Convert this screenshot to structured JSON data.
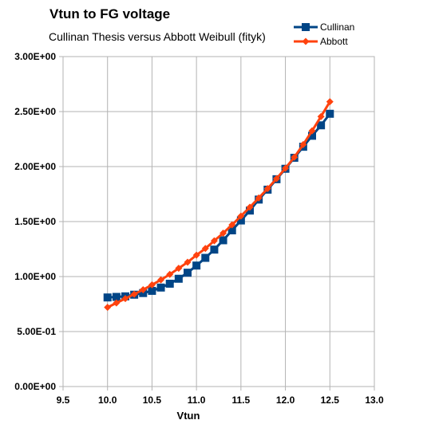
{
  "chart_data": {
    "type": "scatter",
    "title": "Vtun to FG voltage",
    "subtitle": "Cullinan Thesis versus Abbott Weibull (fityk)",
    "xlabel": "Vtun",
    "ylabel": "",
    "xlim": [
      9.5,
      13.0
    ],
    "ylim": [
      0.0,
      3.0
    ],
    "x_ticks": [
      "9.5",
      "10.0",
      "10.5",
      "11.0",
      "11.5",
      "12.0",
      "12.5",
      "13.0"
    ],
    "y_ticks": [
      "0.00E+00",
      "5.00E-01",
      "1.00E+00",
      "1.50E+00",
      "2.00E+00",
      "2.50E+00",
      "3.00E+00"
    ],
    "grid": true,
    "legend_position": "top-right",
    "series": [
      {
        "name": "Cullinan",
        "color": "#004586",
        "marker": "square",
        "x": [
          10.0,
          10.1,
          10.2,
          10.3,
          10.4,
          10.5,
          10.6,
          10.7,
          10.8,
          10.9,
          11.0,
          11.1,
          11.2,
          11.3,
          11.4,
          11.5,
          11.6,
          11.7,
          11.8,
          11.9,
          12.0,
          12.1,
          12.2,
          12.3,
          12.4,
          12.5
        ],
        "y": [
          0.81,
          0.815,
          0.82,
          0.835,
          0.85,
          0.87,
          0.9,
          0.935,
          0.98,
          1.035,
          1.1,
          1.17,
          1.245,
          1.33,
          1.42,
          1.51,
          1.6,
          1.7,
          1.79,
          1.885,
          1.98,
          2.08,
          2.18,
          2.28,
          2.375,
          2.48
        ]
      },
      {
        "name": "Abbott",
        "color": "#ff420e",
        "marker": "diamond",
        "x": [
          10.0,
          10.1,
          10.2,
          10.3,
          10.4,
          10.5,
          10.6,
          10.7,
          10.8,
          10.9,
          11.0,
          11.1,
          11.2,
          11.3,
          11.4,
          11.5,
          11.6,
          11.7,
          11.8,
          11.9,
          12.0,
          12.1,
          12.2,
          12.3,
          12.4,
          12.5
        ],
        "y": [
          0.72,
          0.76,
          0.8,
          0.84,
          0.88,
          0.925,
          0.97,
          1.02,
          1.075,
          1.13,
          1.195,
          1.255,
          1.325,
          1.395,
          1.47,
          1.55,
          1.63,
          1.715,
          1.8,
          1.89,
          1.985,
          2.085,
          2.2,
          2.325,
          2.455,
          2.59
        ]
      }
    ]
  }
}
